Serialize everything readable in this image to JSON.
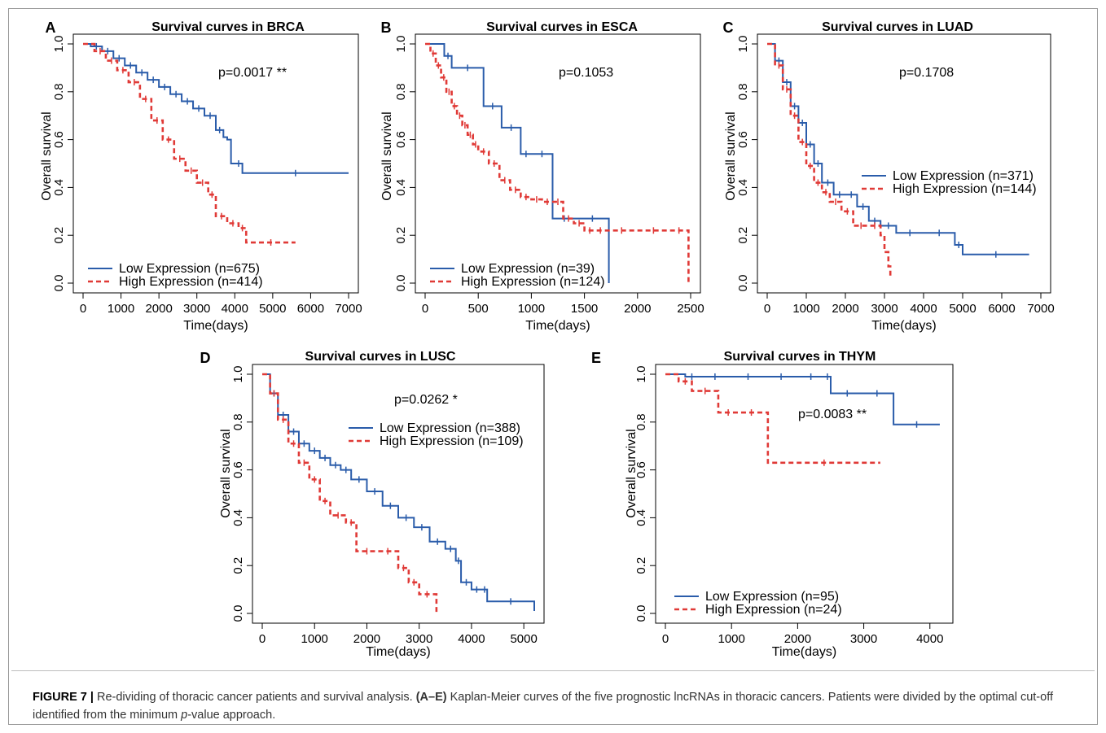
{
  "caption": {
    "label": "FIGURE 7 |",
    "text1": " Re-dividing of thoracic cancer patients and survival analysis. ",
    "range": "(A–E)",
    "text2": " Kaplan-Meier curves of the five prognostic lncRNAs in thoracic cancers. Patients were divided by the optimal cut-off identified from the minimum ",
    "italic": "p",
    "text3": "-value approach."
  },
  "colors": {
    "low": "#2a5caa",
    "high": "#e03a37",
    "axis": "#000000"
  },
  "chart_data": [
    {
      "panel": "A",
      "type": "line",
      "title": "Survival curves in BRCA",
      "xlabel": "Time(days)",
      "ylabel": "Overall survival",
      "xlim": [
        0,
        7000
      ],
      "ylim": [
        0,
        1
      ],
      "xticks": [
        0,
        1000,
        2000,
        3000,
        4000,
        5000,
        6000,
        7000
      ],
      "yticks": [
        0.0,
        0.2,
        0.4,
        0.6,
        0.8,
        1.0
      ],
      "pvalue": "p=0.0017",
      "stars": "**",
      "series": [
        {
          "name": "Low Expression (n=675)",
          "style": "solid",
          "x": [
            0,
            200,
            500,
            800,
            1100,
            1400,
            1700,
            2000,
            2300,
            2600,
            2900,
            3200,
            3500,
            3700,
            3800,
            3900,
            4000,
            4200,
            7000
          ],
          "y": [
            1.0,
            0.99,
            0.97,
            0.94,
            0.91,
            0.88,
            0.85,
            0.82,
            0.79,
            0.76,
            0.73,
            0.7,
            0.64,
            0.61,
            0.6,
            0.5,
            0.5,
            0.46,
            0.46
          ]
        },
        {
          "name": "High Expression (n=414)",
          "style": "dashed",
          "x": [
            0,
            300,
            600,
            900,
            1200,
            1500,
            1800,
            2100,
            2400,
            2700,
            3000,
            3300,
            3500,
            3800,
            4100,
            4300,
            5600
          ],
          "y": [
            1.0,
            0.97,
            0.93,
            0.89,
            0.84,
            0.77,
            0.68,
            0.6,
            0.52,
            0.47,
            0.42,
            0.37,
            0.28,
            0.25,
            0.23,
            0.17,
            0.17
          ]
        }
      ]
    },
    {
      "panel": "B",
      "type": "line",
      "title": "Survival curves in ESCA",
      "xlabel": "Time(days)",
      "ylabel": "Overall survival",
      "xlim": [
        0,
        2500
      ],
      "ylim": [
        0,
        1
      ],
      "xticks": [
        0,
        500,
        1000,
        1500,
        2000,
        2500
      ],
      "yticks": [
        0.0,
        0.2,
        0.4,
        0.6,
        0.8,
        1.0
      ],
      "pvalue": "p=0.1053",
      "stars": "",
      "series": [
        {
          "name": "Low Expression (n=39)",
          "style": "solid",
          "x": [
            0,
            180,
            250,
            550,
            720,
            900,
            1000,
            1200,
            1420,
            1730,
            1730
          ],
          "y": [
            1.0,
            0.95,
            0.9,
            0.74,
            0.65,
            0.54,
            0.54,
            0.27,
            0.27,
            0.27,
            0.0
          ]
        },
        {
          "name": "High Expression (n=124)",
          "style": "dashed",
          "x": [
            0,
            50,
            100,
            150,
            200,
            250,
            300,
            350,
            400,
            450,
            500,
            600,
            700,
            800,
            900,
            1000,
            1100,
            1200,
            1300,
            1400,
            1500,
            1600,
            1700,
            2000,
            2300,
            2480,
            2480
          ],
          "y": [
            1.0,
            0.96,
            0.91,
            0.86,
            0.8,
            0.74,
            0.7,
            0.66,
            0.62,
            0.58,
            0.55,
            0.5,
            0.43,
            0.39,
            0.36,
            0.35,
            0.34,
            0.34,
            0.27,
            0.25,
            0.22,
            0.22,
            0.22,
            0.22,
            0.22,
            0.22,
            0.0
          ]
        }
      ]
    },
    {
      "panel": "C",
      "type": "line",
      "title": "Survival curves in LUAD",
      "xlabel": "Time(days)",
      "ylabel": "Overall survival",
      "xlim": [
        0,
        7000
      ],
      "ylim": [
        0,
        1
      ],
      "xticks": [
        0,
        1000,
        2000,
        3000,
        4000,
        5000,
        6000,
        7000
      ],
      "yticks": [
        0.0,
        0.2,
        0.4,
        0.6,
        0.8,
        1.0
      ],
      "pvalue": "p=0.1708",
      "stars": "",
      "series": [
        {
          "name": "Low Expression (n=371)",
          "style": "solid",
          "x": [
            0,
            200,
            400,
            600,
            800,
            1000,
            1200,
            1400,
            1700,
            2000,
            2300,
            2600,
            2900,
            3300,
            4000,
            4800,
            5000,
            6700
          ],
          "y": [
            1.0,
            0.93,
            0.84,
            0.74,
            0.67,
            0.58,
            0.5,
            0.42,
            0.37,
            0.37,
            0.32,
            0.26,
            0.24,
            0.21,
            0.21,
            0.16,
            0.12,
            0.12
          ]
        },
        {
          "name": "High Expression (n=144)",
          "style": "dashed",
          "x": [
            0,
            200,
            400,
            600,
            800,
            1000,
            1200,
            1400,
            1600,
            1900,
            2200,
            2600,
            2900,
            3000,
            3100,
            3150
          ],
          "y": [
            1.0,
            0.91,
            0.81,
            0.7,
            0.59,
            0.49,
            0.42,
            0.38,
            0.34,
            0.3,
            0.24,
            0.24,
            0.2,
            0.13,
            0.07,
            0.02
          ]
        }
      ]
    },
    {
      "panel": "D",
      "type": "line",
      "title": "Survival curves in LUSC",
      "xlabel": "Time(days)",
      "ylabel": "Overall survival",
      "xlim": [
        0,
        5200
      ],
      "ylim": [
        0,
        1
      ],
      "xticks": [
        0,
        1000,
        2000,
        3000,
        4000,
        5000
      ],
      "yticks": [
        0.0,
        0.2,
        0.4,
        0.6,
        0.8,
        1.0
      ],
      "pvalue": "p=0.0262",
      "stars": "*",
      "series": [
        {
          "name": "Low Expression (n=388)",
          "style": "solid",
          "x": [
            0,
            150,
            300,
            500,
            700,
            900,
            1100,
            1300,
            1500,
            1700,
            2000,
            2300,
            2600,
            2900,
            3200,
            3500,
            3700,
            3800,
            4000,
            4200,
            4300,
            5200,
            5200
          ],
          "y": [
            1.0,
            0.92,
            0.83,
            0.76,
            0.71,
            0.68,
            0.65,
            0.62,
            0.6,
            0.56,
            0.51,
            0.45,
            0.4,
            0.36,
            0.3,
            0.27,
            0.22,
            0.13,
            0.1,
            0.1,
            0.05,
            0.05,
            0.01
          ]
        },
        {
          "name": "High Expression (n=109)",
          "style": "dashed",
          "x": [
            0,
            150,
            300,
            500,
            700,
            900,
            1100,
            1300,
            1600,
            1800,
            2200,
            2600,
            2800,
            3000,
            3300,
            3330
          ],
          "y": [
            1.0,
            0.92,
            0.81,
            0.71,
            0.63,
            0.56,
            0.47,
            0.41,
            0.38,
            0.26,
            0.26,
            0.19,
            0.13,
            0.08,
            0.08,
            0.0
          ]
        }
      ]
    },
    {
      "panel": "E",
      "type": "line",
      "title": "Survival curves in THYM",
      "xlabel": "Time(days)",
      "ylabel": "Overall survival",
      "xlim": [
        0,
        4200
      ],
      "ylim": [
        0,
        1
      ],
      "xticks": [
        0,
        1000,
        2000,
        3000,
        4000
      ],
      "yticks": [
        0.0,
        0.2,
        0.4,
        0.6,
        0.8,
        1.0
      ],
      "pvalue": "p=0.0083",
      "stars": "**",
      "series": [
        {
          "name": "Low Expression (n=95)",
          "style": "solid",
          "x": [
            0,
            300,
            500,
            1000,
            1500,
            2000,
            2400,
            2500,
            3000,
            3400,
            3450,
            4150
          ],
          "y": [
            1.0,
            0.99,
            0.99,
            0.99,
            0.99,
            0.99,
            0.99,
            0.92,
            0.92,
            0.92,
            0.79,
            0.79
          ]
        },
        {
          "name": "High Expression (n=24)",
          "style": "dashed",
          "x": [
            0,
            200,
            400,
            800,
            1100,
            1500,
            1550,
            3250
          ],
          "y": [
            1.0,
            0.97,
            0.93,
            0.84,
            0.84,
            0.84,
            0.63,
            0.63
          ]
        }
      ]
    }
  ]
}
